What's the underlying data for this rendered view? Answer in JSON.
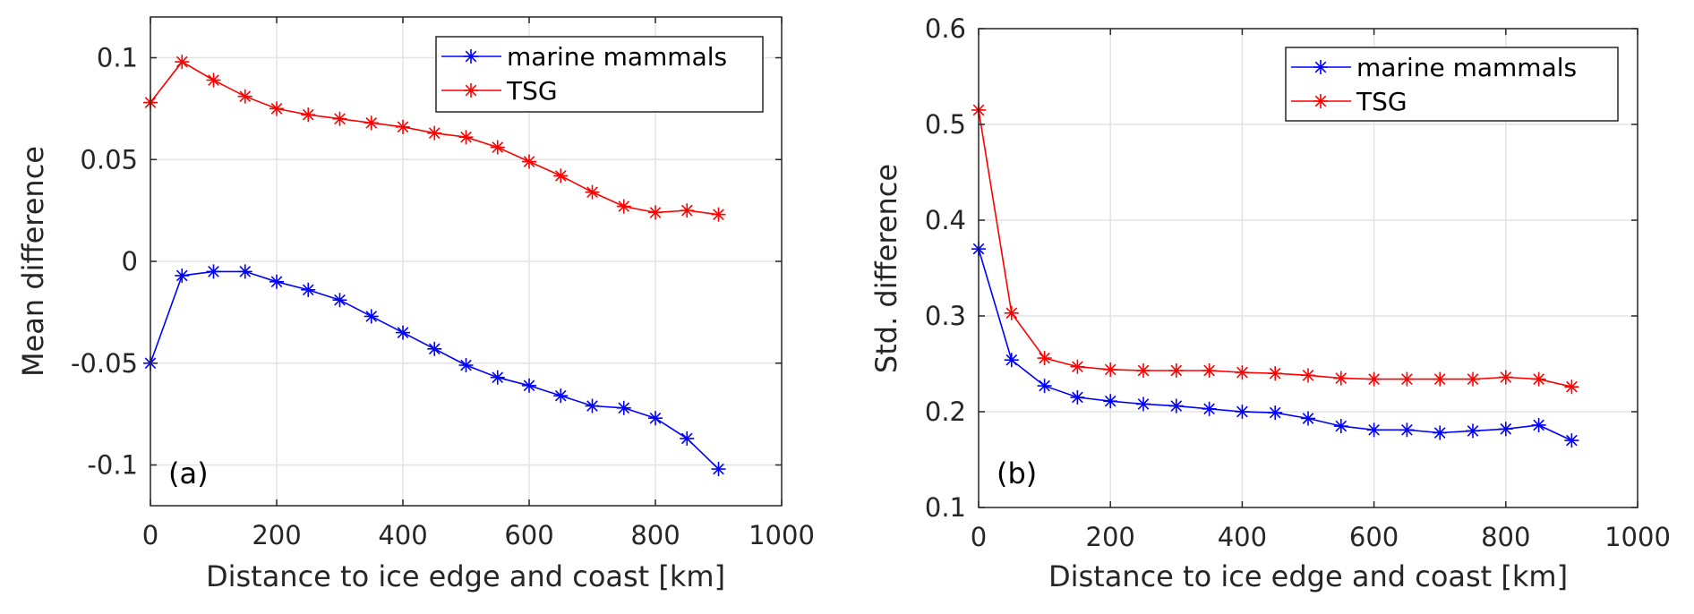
{
  "chart_data": [
    {
      "type": "line",
      "panel_label": "(a)",
      "xlabel": "Distance to ice edge and coast [km]",
      "ylabel": "Mean difference",
      "xlim": [
        0,
        1000
      ],
      "ylim": [
        -0.12,
        0.12
      ],
      "xticks": [
        0,
        200,
        400,
        600,
        800,
        1000
      ],
      "xtick_labels": [
        "0",
        "200",
        "400",
        "600",
        "800",
        "1000"
      ],
      "yticks": [
        -0.1,
        -0.05,
        0,
        0.05,
        0.1
      ],
      "ytick_labels": [
        "-0.1",
        "-0.05",
        "0",
        "0.05",
        "0.1"
      ],
      "grid": true,
      "legend_position": "top-right",
      "x": [
        0,
        50,
        100,
        150,
        200,
        250,
        300,
        350,
        400,
        450,
        500,
        550,
        600,
        650,
        700,
        750,
        800,
        850,
        900
      ],
      "series": [
        {
          "name": "marine mammals",
          "color": "#0000ff",
          "marker": "asterisk",
          "values": [
            -0.05,
            -0.007,
            -0.005,
            -0.005,
            -0.01,
            -0.014,
            -0.019,
            -0.027,
            -0.035,
            -0.043,
            -0.051,
            -0.057,
            -0.061,
            -0.066,
            -0.071,
            -0.072,
            -0.077,
            -0.087,
            -0.102
          ]
        },
        {
          "name": "TSG",
          "color": "#ff0000",
          "marker": "asterisk",
          "values": [
            0.078,
            0.098,
            0.089,
            0.081,
            0.075,
            0.072,
            0.07,
            0.068,
            0.066,
            0.063,
            0.061,
            0.056,
            0.049,
            0.042,
            0.034,
            0.027,
            0.024,
            0.025,
            0.023
          ]
        }
      ]
    },
    {
      "type": "line",
      "panel_label": "(b)",
      "xlabel": "Distance to ice edge and coast [km]",
      "ylabel": "Std. difference",
      "xlim": [
        0,
        1000
      ],
      "ylim": [
        0.1,
        0.6
      ],
      "xticks": [
        0,
        200,
        400,
        600,
        800,
        1000
      ],
      "xtick_labels": [
        "0",
        "200",
        "400",
        "600",
        "800",
        "1000"
      ],
      "yticks": [
        0.1,
        0.2,
        0.3,
        0.4,
        0.5,
        0.6
      ],
      "ytick_labels": [
        "0.1",
        "0.2",
        "0.3",
        "0.4",
        "0.5",
        "0.6"
      ],
      "grid": true,
      "legend_position": "top-right",
      "x": [
        0,
        50,
        100,
        150,
        200,
        250,
        300,
        350,
        400,
        450,
        500,
        550,
        600,
        650,
        700,
        750,
        800,
        850,
        900
      ],
      "series": [
        {
          "name": "marine mammals",
          "color": "#0000ff",
          "marker": "asterisk",
          "values": [
            0.37,
            0.254,
            0.227,
            0.215,
            0.211,
            0.208,
            0.206,
            0.203,
            0.2,
            0.199,
            0.193,
            0.185,
            0.181,
            0.181,
            0.178,
            0.18,
            0.182,
            0.186,
            0.17
          ]
        },
        {
          "name": "TSG",
          "color": "#ff0000",
          "marker": "asterisk",
          "values": [
            0.515,
            0.303,
            0.256,
            0.247,
            0.244,
            0.243,
            0.243,
            0.243,
            0.241,
            0.24,
            0.238,
            0.235,
            0.234,
            0.234,
            0.234,
            0.234,
            0.236,
            0.234,
            0.226
          ]
        }
      ]
    }
  ]
}
